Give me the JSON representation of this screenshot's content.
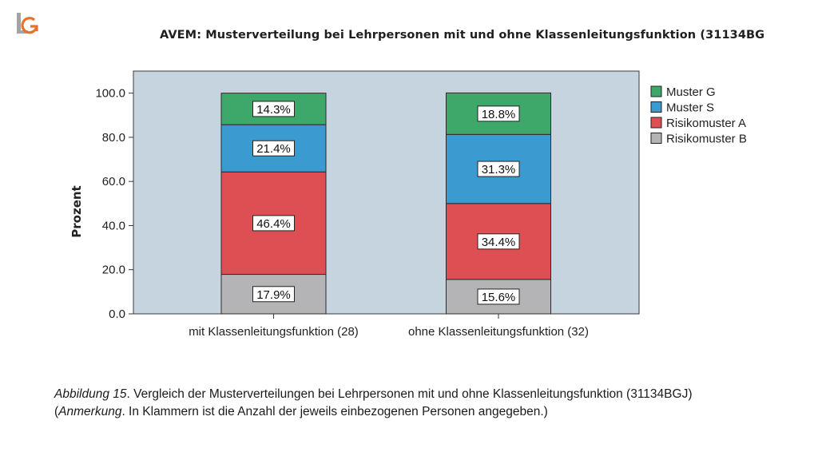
{
  "chart_data": {
    "type": "bar",
    "stacked": true,
    "title": "AVEM: Musterverteilung bei Lehrpersonen mit und ohne Klassenleitungsfunktion (31134BG",
    "ylabel": "Prozent",
    "xlabel": "",
    "ylim": [
      0,
      110
    ],
    "yticks": [
      "0.0",
      "20.0",
      "40.0",
      "60.0",
      "80.0",
      "100.0"
    ],
    "ytick_values": [
      0,
      20,
      40,
      60,
      80,
      100
    ],
    "categories": [
      "mit Klassenleitungsfunktion  (28)",
      "ohne Klassenleitungsfunktion (32)"
    ],
    "series": [
      {
        "name": "Risikomuster B",
        "values": [
          17.9,
          15.6
        ],
        "labels": [
          "17.9%",
          "15.6%"
        ],
        "color": "#b4b4b6"
      },
      {
        "name": "Risikomuster A",
        "values": [
          46.4,
          34.4
        ],
        "labels": [
          "46.4%",
          "34.4%"
        ],
        "color": "#dd4f52"
      },
      {
        "name": "Muster S",
        "values": [
          21.4,
          31.3
        ],
        "labels": [
          "21.4%",
          "31.3%"
        ],
        "color": "#3b9ad0"
      },
      {
        "name": "Muster G",
        "values": [
          14.3,
          18.8
        ],
        "labels": [
          "14.3%",
          "18.8%"
        ],
        "color": "#3ea86a"
      }
    ],
    "legend_order": [
      "Muster G",
      "Muster S",
      "Risikomuster A",
      "Risikomuster B"
    ],
    "legend_position": "right",
    "plot_background": "#c6d4e0",
    "grid": false
  },
  "caption": {
    "figure_label": "Abbildung 15",
    "line1_text": ". Vergleich der Musterverteilungen bei Lehrpersonen mit und ohne Klassenleitungsfunktion  (31134BGJ)",
    "note_label": "Anmerkung",
    "line2_prefix": "(",
    "line2_text": ".  In Klammern ist die Anzahl der jeweils einbezogenen Personen angegeben.)"
  },
  "logo": {
    "icon": "lg-logo-icon",
    "colors": [
      "#9a9a9a",
      "#e8722a"
    ]
  }
}
